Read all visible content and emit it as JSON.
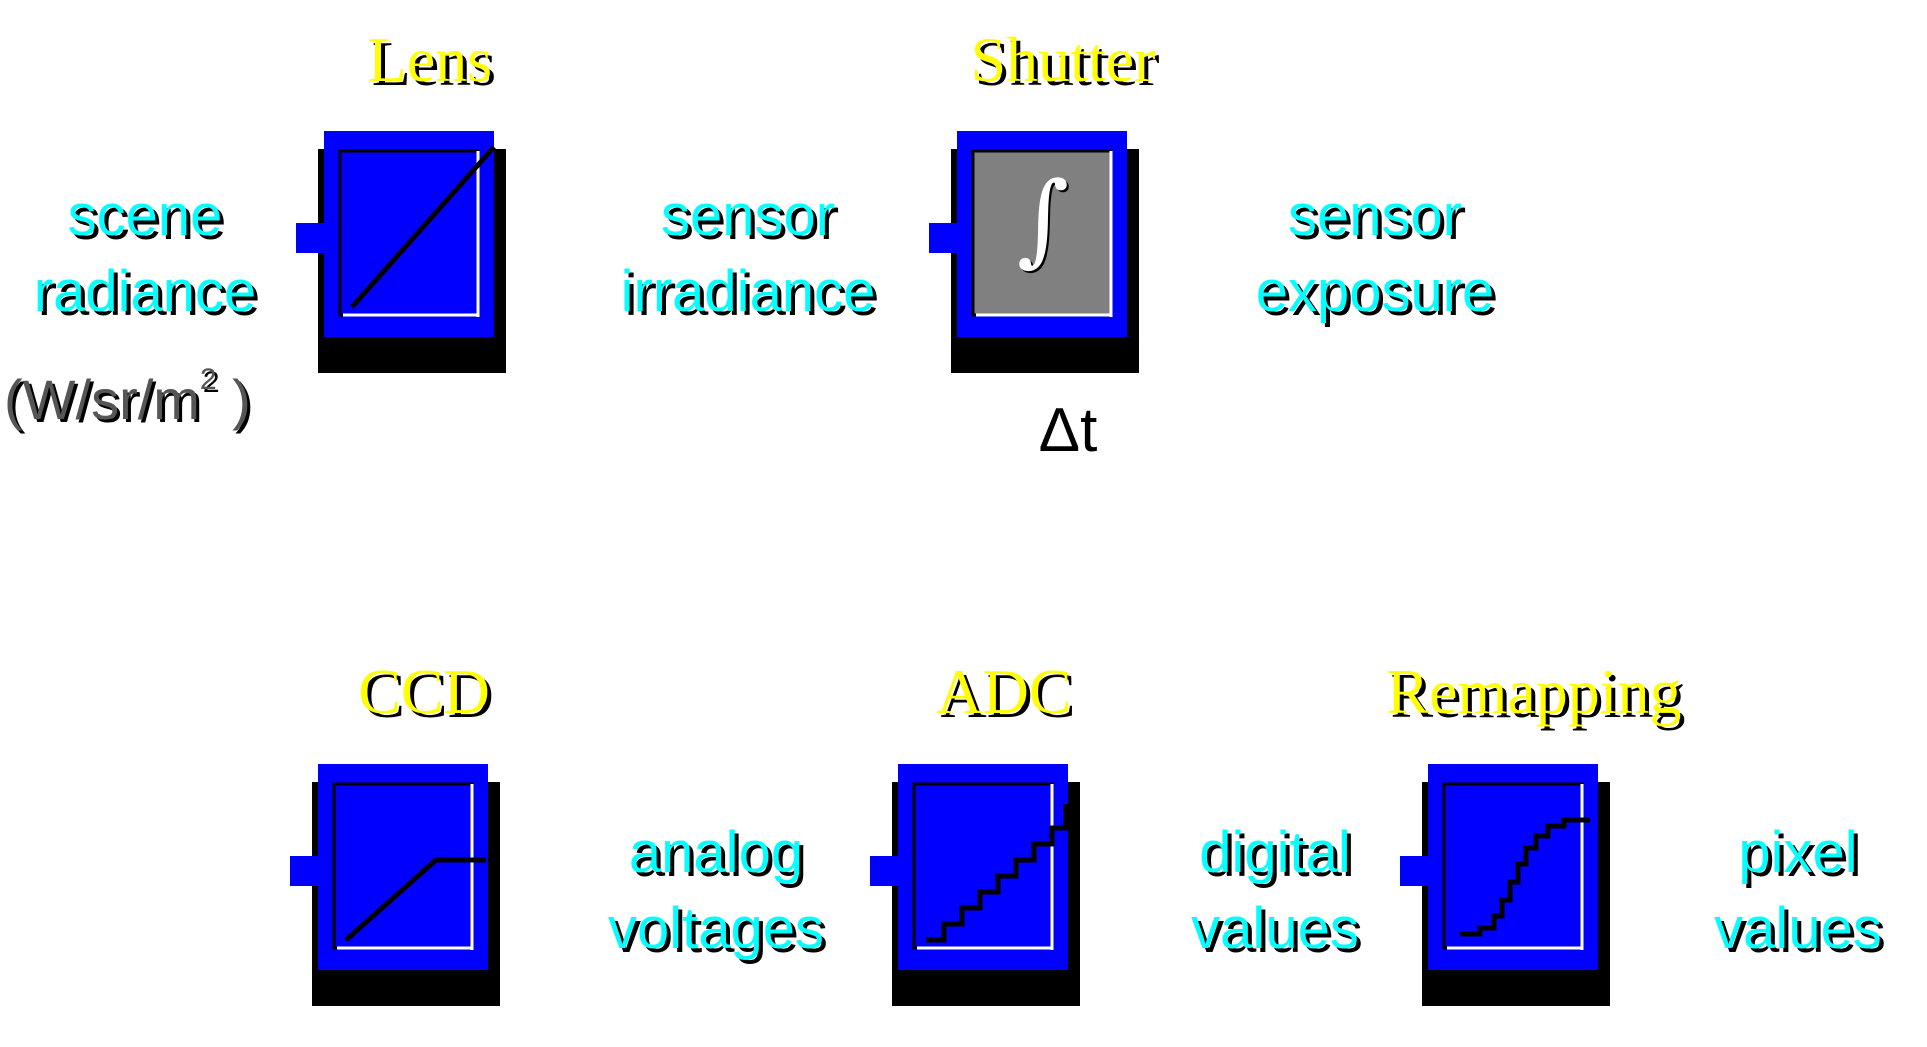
{
  "blocks": {
    "lens": {
      "title": "Lens"
    },
    "shutter": {
      "title": "Shutter",
      "integral_symbol": "∫",
      "parameter": "Δt"
    },
    "ccd": {
      "title": "CCD"
    },
    "adc": {
      "title": "ADC"
    },
    "remapping": {
      "title": "Remapping"
    }
  },
  "signals": {
    "scene_radiance": {
      "line1": "scene",
      "line2": "radiance",
      "units_base": "(W/sr/m",
      "units_exp": "2",
      "units_close": " )"
    },
    "sensor_irradiance": {
      "line1": "sensor",
      "line2": "irradiance"
    },
    "sensor_exposure": {
      "line1": "sensor",
      "line2": "exposure"
    },
    "analog_voltages": {
      "line1": "analog",
      "line2": "voltages"
    },
    "digital_values": {
      "line1": "digital",
      "line2": "values"
    },
    "pixel_values": {
      "line1": "pixel",
      "line2": "values"
    }
  },
  "colors": {
    "block_fill": "#0000ff",
    "shutter_fill": "#808080",
    "title_text": "#ffff00",
    "signal_text": "#00ffff",
    "shadow": "#000000"
  }
}
